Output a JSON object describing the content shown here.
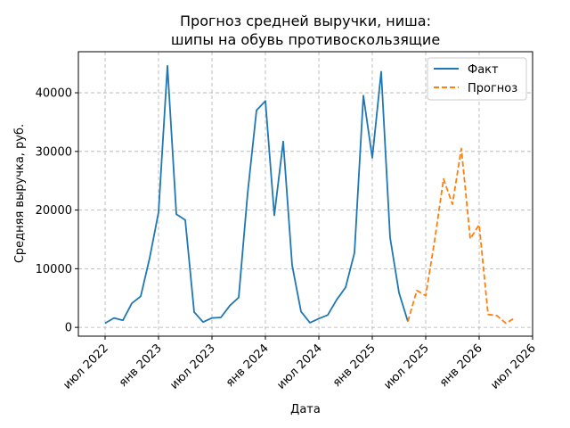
{
  "chart_data": {
    "type": "line",
    "title_lines": [
      "Прогноз средней выручки, ниша:",
      "шипы на обувь противоскользящие"
    ],
    "xlabel": "Дата",
    "ylabel": "Средняя выручка, руб.",
    "x_ticks": [
      {
        "date": "2022-07",
        "label": "июл 2022"
      },
      {
        "date": "2023-01",
        "label": "янв 2023"
      },
      {
        "date": "2023-07",
        "label": "июл 2023"
      },
      {
        "date": "2024-01",
        "label": "янв 2024"
      },
      {
        "date": "2024-07",
        "label": "июл 2024"
      },
      {
        "date": "2025-01",
        "label": "янв 2025"
      },
      {
        "date": "2025-07",
        "label": "июл 2025"
      },
      {
        "date": "2026-01",
        "label": "янв 2026"
      },
      {
        "date": "2026-07",
        "label": "июл 2026"
      }
    ],
    "y_ticks": [
      0,
      10000,
      20000,
      30000,
      40000
    ],
    "xlim": [
      "2022-04",
      "2026-07"
    ],
    "ylim": [
      -1500,
      47000
    ],
    "grid": true,
    "legend_position": "top-right",
    "series": [
      {
        "name": "Факт",
        "color": "#1f77b4",
        "style": "solid",
        "points": [
          [
            "2022-07",
            700
          ],
          [
            "2022-08",
            1600
          ],
          [
            "2022-09",
            1200
          ],
          [
            "2022-10",
            4100
          ],
          [
            "2022-11",
            5300
          ],
          [
            "2022-12",
            11800
          ],
          [
            "2023-01",
            19600
          ],
          [
            "2023-02",
            44600
          ],
          [
            "2023-03",
            19300
          ],
          [
            "2023-04",
            18300
          ],
          [
            "2023-05",
            2600
          ],
          [
            "2023-06",
            900
          ],
          [
            "2023-07",
            1600
          ],
          [
            "2023-08",
            1700
          ],
          [
            "2023-09",
            3700
          ],
          [
            "2023-10",
            5100
          ],
          [
            "2023-11",
            22800
          ],
          [
            "2023-12",
            37000
          ],
          [
            "2024-01",
            38600
          ],
          [
            "2024-02",
            19100
          ],
          [
            "2024-03",
            31700
          ],
          [
            "2024-04",
            10600
          ],
          [
            "2024-05",
            2700
          ],
          [
            "2024-06",
            800
          ],
          [
            "2024-07",
            1500
          ],
          [
            "2024-08",
            2100
          ],
          [
            "2024-09",
            4700
          ],
          [
            "2024-10",
            6800
          ],
          [
            "2024-11",
            12700
          ],
          [
            "2024-12",
            39500
          ],
          [
            "2025-01",
            28900
          ],
          [
            "2025-02",
            43600
          ],
          [
            "2025-03",
            15300
          ],
          [
            "2025-04",
            5900
          ],
          [
            "2025-05",
            1000
          ]
        ]
      },
      {
        "name": "Прогноз",
        "color": "#ff7f0e",
        "style": "dashed",
        "points": [
          [
            "2025-05",
            1000
          ],
          [
            "2025-06",
            6300
          ],
          [
            "2025-07",
            5400
          ],
          [
            "2025-08",
            14800
          ],
          [
            "2025-09",
            25300
          ],
          [
            "2025-10",
            21000
          ],
          [
            "2025-11",
            30500
          ],
          [
            "2025-12",
            15100
          ],
          [
            "2026-01",
            17500
          ],
          [
            "2026-02",
            2200
          ],
          [
            "2026-03",
            2000
          ],
          [
            "2026-04",
            700
          ],
          [
            "2026-05",
            1600
          ]
        ]
      }
    ]
  }
}
